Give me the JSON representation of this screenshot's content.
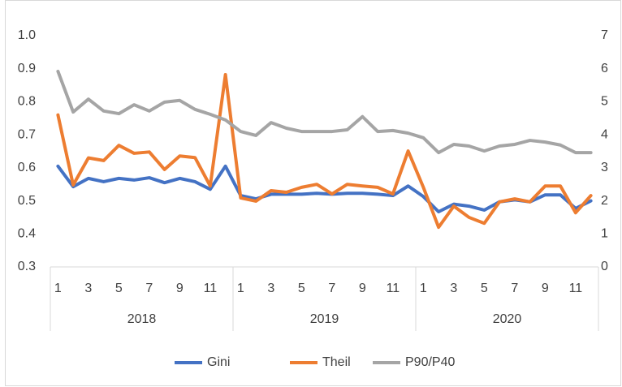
{
  "chart_data": {
    "type": "line",
    "categories": [
      "1",
      null,
      "3",
      null,
      "5",
      null,
      "7",
      null,
      "9",
      null,
      "11",
      null,
      "1",
      null,
      "3",
      null,
      "5",
      null,
      "7",
      null,
      "9",
      null,
      "11",
      null,
      "1",
      null,
      "3",
      null,
      "5",
      null,
      "7",
      null,
      "9",
      null,
      "11",
      null
    ],
    "category_groups": [
      "2018",
      "2019",
      "2020"
    ],
    "ylim": [
      0.3,
      1
    ],
    "yticks": [
      0.3,
      0.4,
      0.5,
      0.6,
      0.7,
      0.8,
      0.9,
      {
        "value": 1,
        "label": "1.0"
      }
    ],
    "y2lim": [
      0,
      7
    ],
    "y2ticks": [
      0,
      1,
      2,
      3,
      4,
      5,
      6,
      7
    ],
    "grid": false,
    "legend": "bottom",
    "series": [
      {
        "name": "Gini",
        "color": "#4472c4",
        "values": [
          0.605,
          0.543,
          0.568,
          0.558,
          0.568,
          0.563,
          0.57,
          0.555,
          0.568,
          0.558,
          0.535,
          0.605,
          0.516,
          0.506,
          0.52,
          0.52,
          0.52,
          0.523,
          0.52,
          0.523,
          0.523,
          0.52,
          0.516,
          0.545,
          0.513,
          0.467,
          0.49,
          0.484,
          0.472,
          0.497,
          0.503,
          0.497,
          0.518,
          0.518,
          0.477,
          0.5
        ]
      },
      {
        "name": "Theil",
        "color": "#ed7d31",
        "values": [
          0.76,
          0.548,
          0.63,
          0.622,
          0.668,
          0.644,
          0.648,
          0.595,
          0.636,
          0.631,
          0.545,
          0.882,
          0.509,
          0.499,
          0.531,
          0.526,
          0.541,
          0.55,
          0.521,
          0.55,
          0.545,
          0.541,
          0.521,
          0.651,
          0.541,
          0.42,
          0.484,
          0.45,
          0.432,
          0.497,
          0.506,
          0.497,
          0.545,
          0.545,
          0.464,
          0.516
        ]
      },
      {
        "name": "P90/P40",
        "color": "#a5a5a5",
        "axis": "y2",
        "values": [
          5.92,
          4.69,
          5.08,
          4.72,
          4.64,
          4.91,
          4.72,
          4.99,
          5.04,
          4.77,
          4.62,
          4.45,
          4.1,
          3.98,
          4.37,
          4.2,
          4.1,
          4.1,
          4.1,
          4.15,
          4.55,
          4.1,
          4.13,
          4.05,
          3.91,
          3.46,
          3.71,
          3.66,
          3.51,
          3.66,
          3.71,
          3.83,
          3.78,
          3.69,
          3.46,
          3.46
        ]
      }
    ]
  }
}
